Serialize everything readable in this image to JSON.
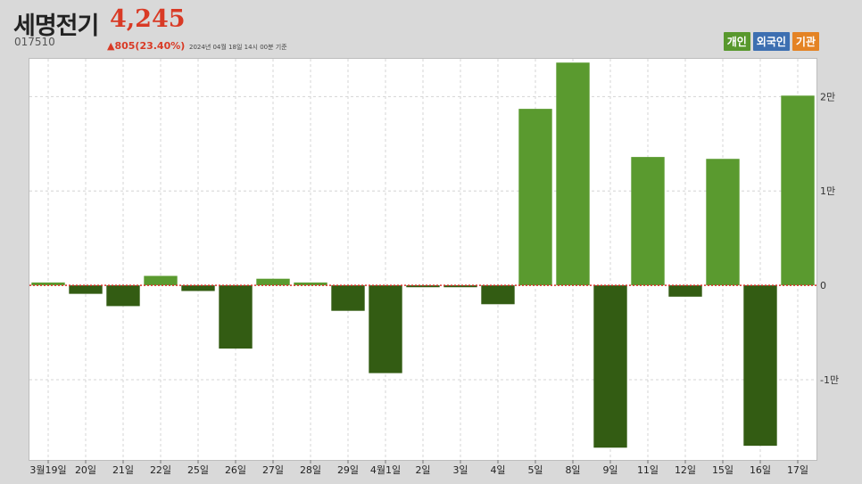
{
  "header": {
    "stock_name": "세명전기",
    "price": "4,245",
    "code": "017510",
    "change": "▲805(23.40%)",
    "timestamp": "2024년 04월 18일 14시 00분 기준"
  },
  "legend": {
    "individual": "개인",
    "foreign": "외국인",
    "institution": "기관"
  },
  "colors": {
    "positive": "#5a9a2f",
    "negative": "#335c13",
    "zero_line": "#d9302a",
    "grid": "#d4d4d4"
  },
  "chart_data": {
    "type": "bar",
    "title": "",
    "xlabel": "",
    "ylabel": "",
    "ylim": [
      -18500,
      24000
    ],
    "yticks": [
      {
        "value": 20000,
        "label": "2만"
      },
      {
        "value": 10000,
        "label": "1만"
      },
      {
        "value": 0,
        "label": "0"
      },
      {
        "value": -10000,
        "label": "-1만"
      }
    ],
    "categories": [
      "3월19일",
      "20일",
      "21일",
      "22일",
      "25일",
      "26일",
      "27일",
      "28일",
      "29일",
      "4월1일",
      "2일",
      "3일",
      "4일",
      "5일",
      "8일",
      "9일",
      "11일",
      "12일",
      "15일",
      "16일",
      "17일"
    ],
    "series": [
      {
        "values": [
          300,
          -900,
          -2200,
          1000,
          -600,
          -6700,
          700,
          300,
          -2700,
          -9300,
          -200,
          -200,
          -2000,
          18700,
          23600,
          -17200,
          13600,
          -1200,
          13400,
          -17000,
          20100
        ]
      }
    ]
  }
}
